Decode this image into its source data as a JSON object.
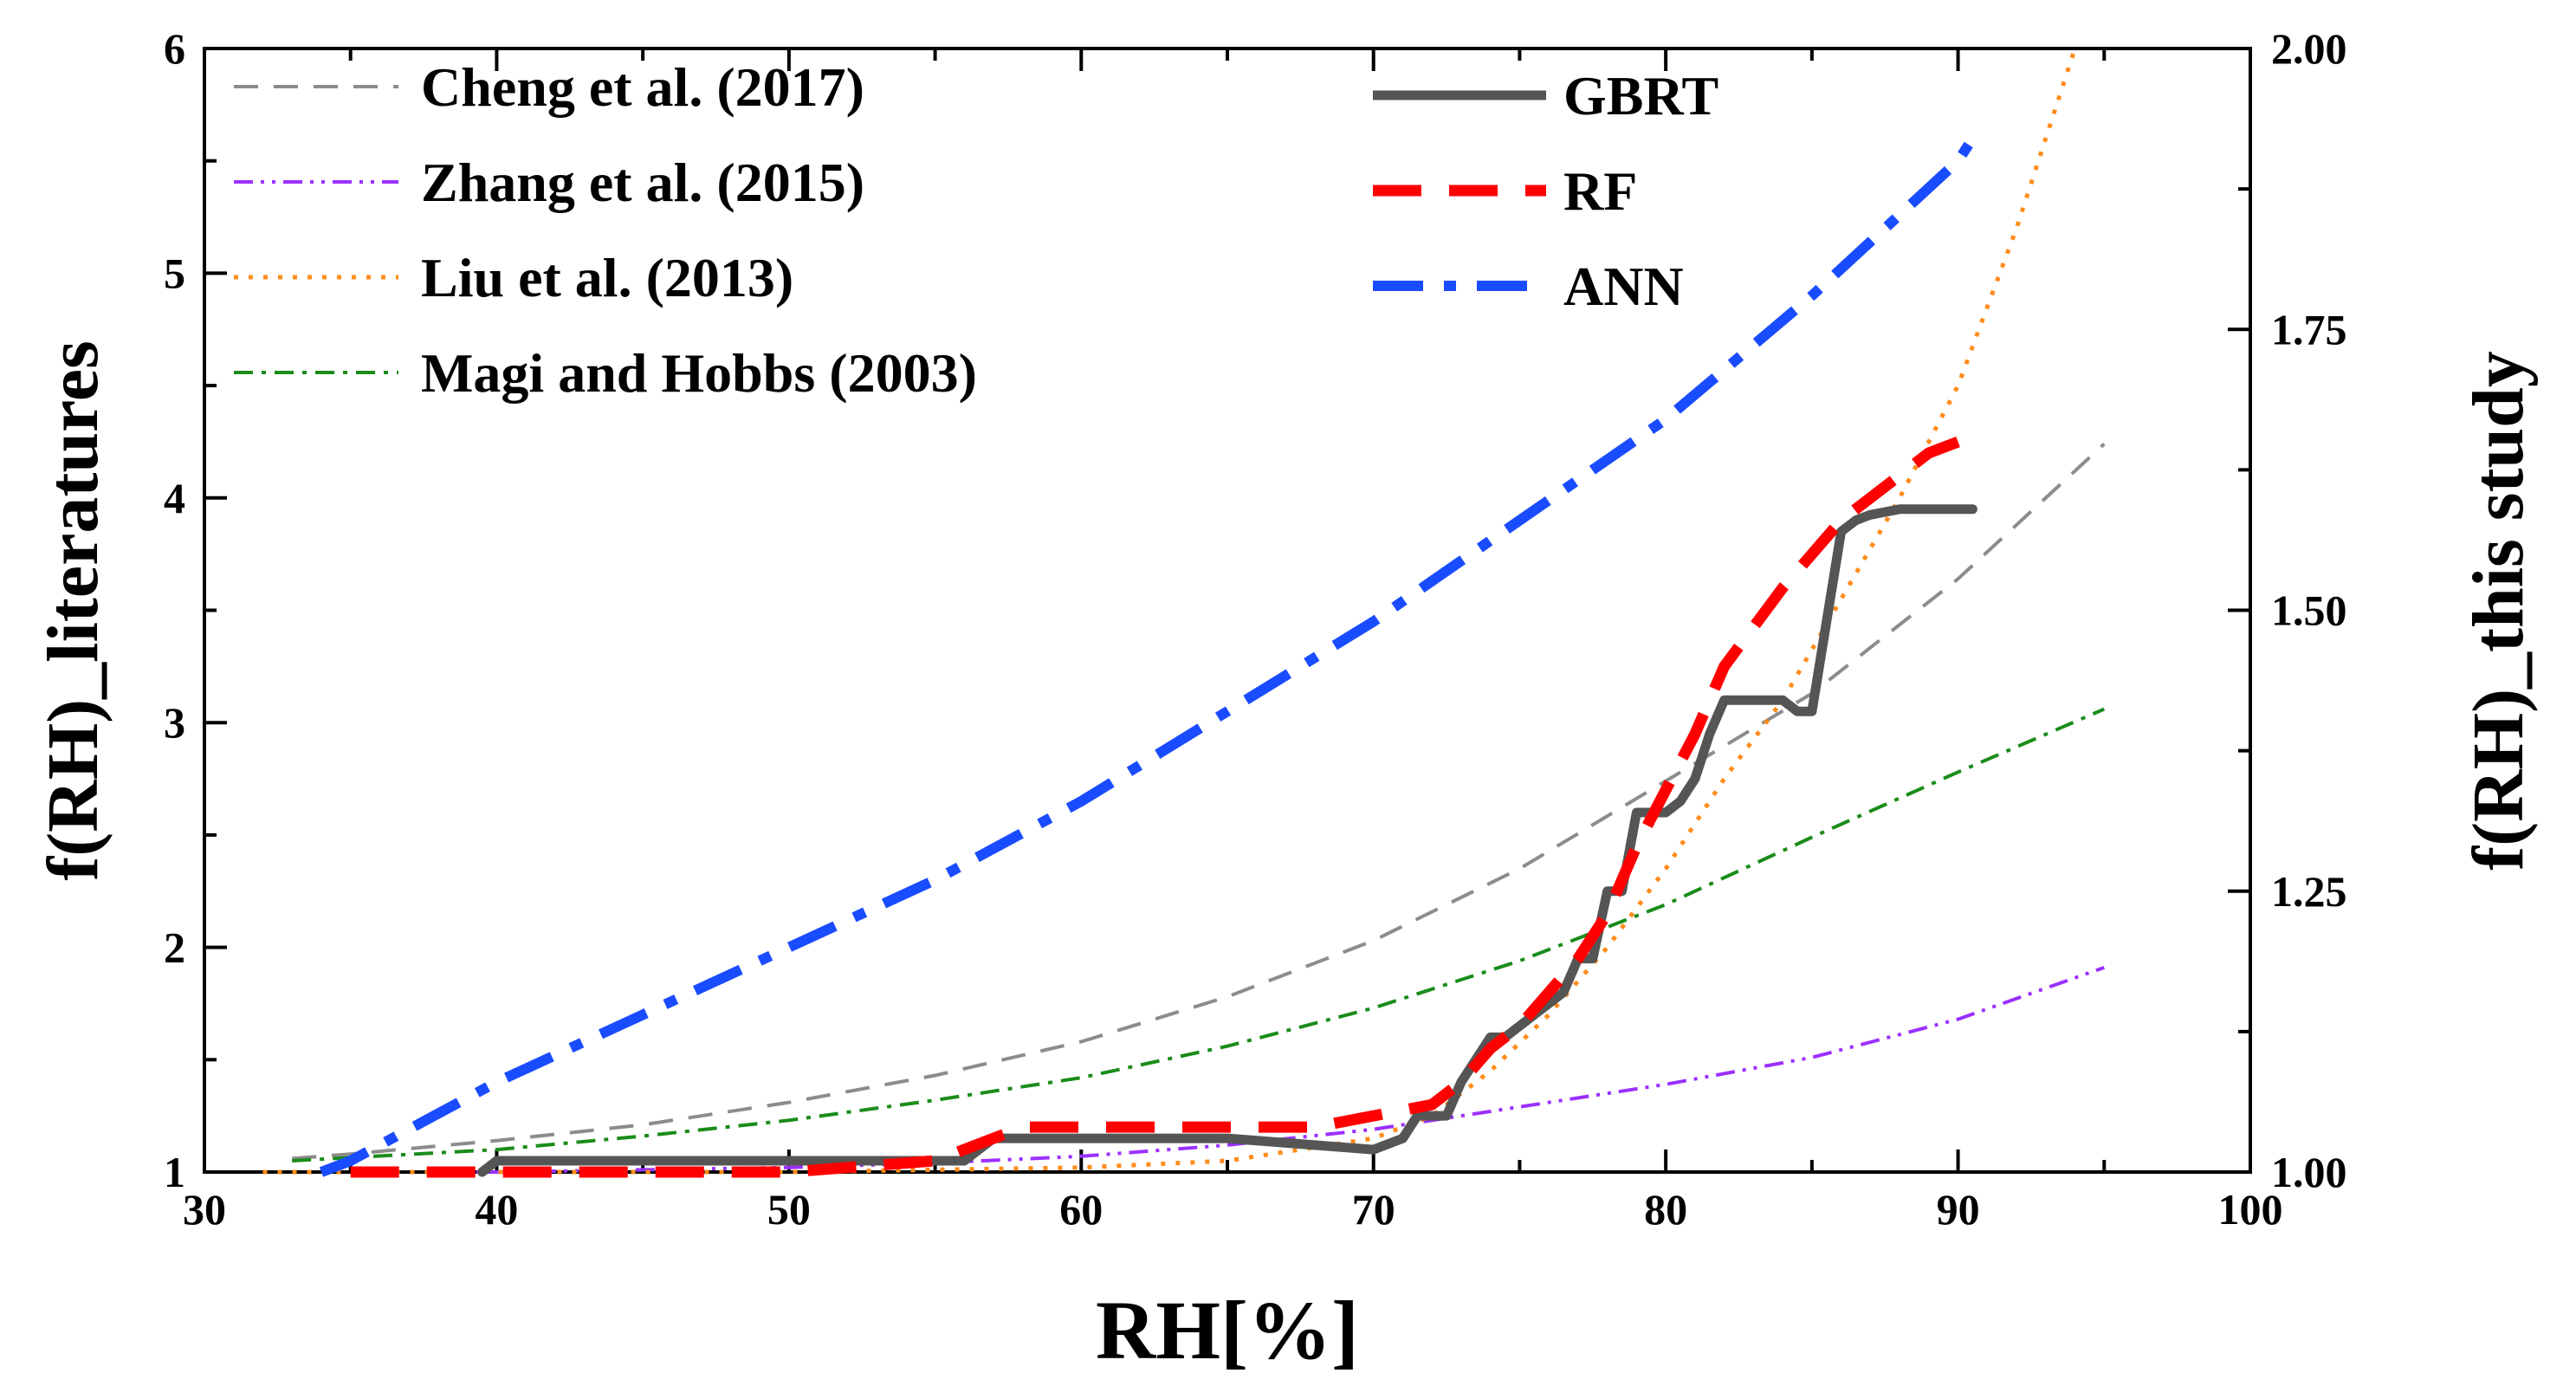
{
  "chart_data": {
    "type": "line",
    "title": "",
    "xlabel": "RH[%]",
    "ylabel": "f(RH)_literatures",
    "y2label": "f(RH)_this study",
    "xlim": [
      30,
      100
    ],
    "ylim": [
      1,
      6
    ],
    "y2lim": [
      1.0,
      2.0
    ],
    "x_ticks": [
      30,
      40,
      50,
      60,
      70,
      80,
      90,
      100
    ],
    "y_ticks": [
      1,
      2,
      3,
      4,
      5,
      6
    ],
    "y2_ticks": [
      "1.00",
      "1.25",
      "1.50",
      "1.75",
      "2.00"
    ],
    "grid": false,
    "legend_left_placement": "top-left",
    "legend_right_placement": "top-center",
    "series": [
      {
        "name": "Cheng et al. (2017)",
        "axis": "left",
        "color": "#8c8c8c",
        "style": "dashed-thin",
        "x": [
          33,
          35,
          40,
          45,
          50,
          55,
          60,
          65,
          70,
          75,
          80,
          85,
          90,
          95
        ],
        "y": [
          1.06,
          1.08,
          1.14,
          1.21,
          1.31,
          1.43,
          1.58,
          1.78,
          2.03,
          2.35,
          2.74,
          3.13,
          3.64,
          4.24
        ]
      },
      {
        "name": "Zhang et al. (2015)",
        "axis": "left",
        "color": "#9b30ff",
        "style": "dash-dot-dot",
        "x": [
          38,
          40,
          45,
          50,
          55,
          60,
          65,
          70,
          75,
          80,
          85,
          90,
          95
        ],
        "y": [
          1.0,
          1.0,
          1.01,
          1.02,
          1.04,
          1.07,
          1.12,
          1.19,
          1.29,
          1.39,
          1.51,
          1.68,
          1.91
        ]
      },
      {
        "name": "Liu et al. (2013)",
        "axis": "left",
        "color": "#ff8c1a",
        "style": "dotted",
        "x": [
          32,
          40,
          50,
          60,
          65,
          70,
          72,
          74,
          76,
          78,
          80,
          82,
          84,
          86,
          88,
          90,
          92,
          93,
          94
        ],
        "y": [
          1.0,
          1.0,
          1.0,
          1.02,
          1.05,
          1.15,
          1.25,
          1.45,
          1.7,
          2.0,
          2.35,
          2.75,
          3.1,
          3.55,
          4.0,
          4.5,
          5.2,
          5.6,
          6.0
        ]
      },
      {
        "name": "Magi and Hobbs (2003)",
        "axis": "left",
        "color": "#1a8c1a",
        "style": "dash-dot",
        "x": [
          33,
          40,
          45,
          50,
          55,
          60,
          65,
          70,
          75,
          80,
          85,
          90,
          95
        ],
        "y": [
          1.05,
          1.1,
          1.16,
          1.23,
          1.32,
          1.42,
          1.56,
          1.73,
          1.94,
          2.19,
          2.49,
          2.78,
          3.06
        ]
      },
      {
        "name": "GBRT",
        "axis": "right",
        "color": "#555555",
        "style": "solid-thick",
        "x": [
          39.5,
          40,
          45,
          50,
          56,
          57,
          60,
          65,
          70,
          71,
          71.5,
          72.5,
          73,
          74,
          74.5,
          75.5,
          76.5,
          77,
          77.5,
          78,
          78.5,
          79,
          79.5,
          80,
          80.5,
          81,
          81.5,
          82,
          83,
          84,
          84.5,
          85,
          86,
          86.5,
          87,
          88,
          89,
          90,
          90.5
        ],
        "y": [
          1.0,
          1.01,
          1.01,
          1.01,
          1.01,
          1.03,
          1.03,
          1.03,
          1.02,
          1.03,
          1.05,
          1.05,
          1.08,
          1.12,
          1.12,
          1.14,
          1.16,
          1.19,
          1.19,
          1.25,
          1.25,
          1.32,
          1.32,
          1.32,
          1.33,
          1.35,
          1.39,
          1.42,
          1.42,
          1.42,
          1.41,
          1.41,
          1.57,
          1.58,
          1.585,
          1.59,
          1.59,
          1.59,
          1.59
        ]
      },
      {
        "name": "RF",
        "axis": "right",
        "color": "#ff0000",
        "style": "dashed-thick",
        "x": [
          35,
          40,
          45,
          50,
          55,
          58,
          60,
          65,
          68,
          70,
          72,
          73,
          74,
          75,
          76,
          77,
          78,
          79,
          80,
          81,
          82,
          84,
          85,
          86,
          87,
          88,
          89,
          90
        ],
        "y": [
          1.0,
          1.0,
          1.0,
          1.0,
          1.01,
          1.04,
          1.04,
          1.04,
          1.04,
          1.05,
          1.06,
          1.08,
          1.11,
          1.13,
          1.16,
          1.19,
          1.23,
          1.29,
          1.34,
          1.39,
          1.45,
          1.52,
          1.55,
          1.58,
          1.6,
          1.62,
          1.64,
          1.65
        ]
      },
      {
        "name": "ANN",
        "axis": "right",
        "color": "#1a4cff",
        "style": "dash-dot-thick",
        "x": [
          34,
          35,
          40,
          45,
          50,
          55,
          60,
          65,
          70,
          75,
          80,
          85,
          90,
          90.5
        ],
        "y": [
          1.0,
          1.01,
          1.08,
          1.14,
          1.2,
          1.26,
          1.33,
          1.41,
          1.49,
          1.58,
          1.67,
          1.78,
          1.9,
          1.92
        ]
      }
    ]
  }
}
